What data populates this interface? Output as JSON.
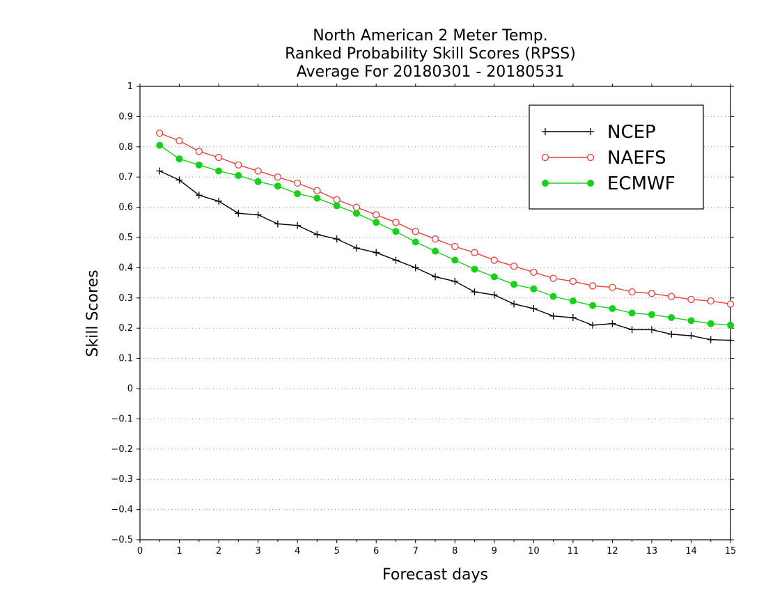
{
  "chart_data": {
    "type": "line",
    "title": [
      "North American 2 Meter Temp.",
      "Ranked Probability Skill Scores (RPSS)",
      "Average For 20180301 - 20180531"
    ],
    "xlabel": "Forecast days",
    "ylabel": "Skill Scores",
    "xlim": [
      0,
      15
    ],
    "ylim": [
      -0.5,
      1
    ],
    "xticks": [
      "0",
      "1",
      "2",
      "3",
      "4",
      "5",
      "6",
      "7",
      "8",
      "9",
      "10",
      "11",
      "12",
      "13",
      "14",
      "15"
    ],
    "yticks": [
      "−0.5",
      "−0.4",
      "−0.3",
      "−0.2",
      "−0.1",
      "0",
      "0.1",
      "0.2",
      "0.3",
      "0.4",
      "0.5",
      "0.6",
      "0.7",
      "0.8",
      "0.9",
      "1"
    ],
    "grid": "horizontal dotted",
    "legend_position": "top-right",
    "x": [
      0.5,
      1,
      1.5,
      2,
      2.5,
      3,
      3.5,
      4,
      4.5,
      5,
      5.5,
      6,
      6.5,
      7,
      7.5,
      8,
      8.5,
      9,
      9.5,
      10,
      10.5,
      11,
      11.5,
      12,
      12.5,
      13,
      13.5,
      14,
      14.5,
      15
    ],
    "series": [
      {
        "name": "NCEP",
        "color": "#000000",
        "marker": "plus",
        "values": [
          0.72,
          0.69,
          0.64,
          0.62,
          0.58,
          0.575,
          0.545,
          0.54,
          0.51,
          0.495,
          0.465,
          0.45,
          0.425,
          0.4,
          0.37,
          0.355,
          0.32,
          0.31,
          0.28,
          0.265,
          0.24,
          0.235,
          0.21,
          0.215,
          0.195,
          0.195,
          0.18,
          0.175,
          0.162,
          0.16
        ]
      },
      {
        "name": "NAEFS",
        "color": "#e8403c",
        "marker": "open-circle",
        "values": [
          0.845,
          0.82,
          0.785,
          0.765,
          0.74,
          0.72,
          0.7,
          0.68,
          0.655,
          0.625,
          0.6,
          0.575,
          0.55,
          0.52,
          0.495,
          0.47,
          0.45,
          0.425,
          0.405,
          0.385,
          0.365,
          0.355,
          0.34,
          0.335,
          0.32,
          0.315,
          0.305,
          0.295,
          0.29,
          0.28
        ]
      },
      {
        "name": "ECMWF",
        "color": "#16d01c",
        "marker": "filled-circle",
        "values": [
          0.805,
          0.76,
          0.74,
          0.72,
          0.705,
          0.685,
          0.67,
          0.645,
          0.63,
          0.605,
          0.58,
          0.55,
          0.52,
          0.485,
          0.455,
          0.425,
          0.395,
          0.37,
          0.345,
          0.33,
          0.305,
          0.29,
          0.275,
          0.265,
          0.25,
          0.245,
          0.235,
          0.225,
          0.215,
          0.21
        ]
      }
    ]
  }
}
